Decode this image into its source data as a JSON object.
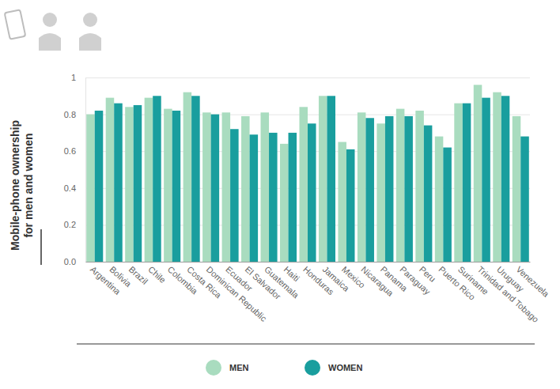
{
  "chart_data": {
    "type": "bar",
    "y_label": [
      "Mobile-phone ownership",
      "for men and women"
    ],
    "categories": [
      "Argentina",
      "Bolivia",
      "Brazil",
      "Chile",
      "Colombia",
      "Costa Rica",
      "Dominican Republic",
      "Ecuador",
      "El Salvador",
      "Guatemala",
      "Haiti",
      "Honduras",
      "Jamaica",
      "Mexico",
      "Nicaragua",
      "Panama",
      "Paraguay",
      "Peru",
      "Puerto Rico",
      "Suriname",
      "Trinidad and Tobago",
      "Uruguay",
      "Venezuela"
    ],
    "series": [
      {
        "name": "MEN",
        "color": "#a9dcbf",
        "values": [
          0.8,
          0.89,
          0.84,
          0.89,
          0.83,
          0.92,
          0.81,
          0.81,
          0.79,
          0.81,
          0.64,
          0.84,
          0.9,
          0.65,
          0.81,
          0.75,
          0.83,
          0.82,
          0.68,
          0.86,
          0.96,
          0.92,
          0.79
        ]
      },
      {
        "name": "WOMEN",
        "color": "#199e9e",
        "values": [
          0.82,
          0.86,
          0.85,
          0.9,
          0.82,
          0.9,
          0.8,
          0.72,
          0.69,
          0.7,
          0.7,
          0.75,
          0.9,
          0.61,
          0.78,
          0.79,
          0.79,
          0.74,
          0.62,
          0.86,
          0.89,
          0.9,
          0.68
        ]
      }
    ],
    "ylim": [
      0,
      1
    ],
    "yticks": [
      {
        "value": 0,
        "label": "0.0"
      },
      0.2,
      0.4,
      0.6,
      0.8,
      1
    ],
    "grid": true,
    "legend": "bottom"
  }
}
